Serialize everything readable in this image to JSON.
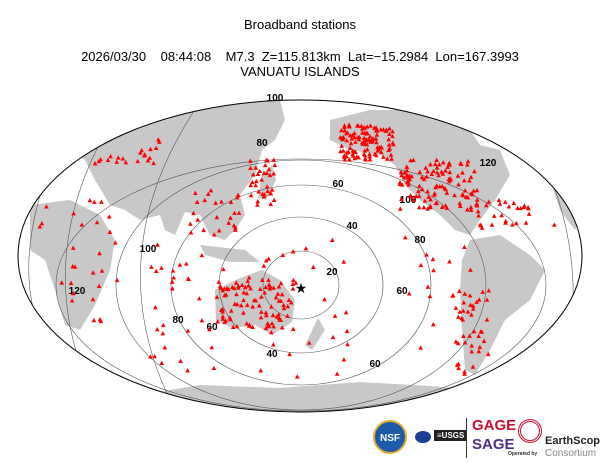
{
  "title": "Broadband stations",
  "event": {
    "date": "2026/03/30",
    "time": "08:44:08",
    "magnitude": "M7.3",
    "depth": "Z=115.813km",
    "lat": "Lat=−15.2984",
    "lon": "Lon=167.3993",
    "region": "VANUATU ISLANDS"
  },
  "map": {
    "land_color": "#c8c8c8",
    "station_color": "#ff0000",
    "epicenter_marker": "star",
    "contour_labels": [
      "100",
      "80",
      "60",
      "40",
      "20",
      "60",
      "80",
      "100",
      "120",
      "80",
      "60",
      "40",
      "60",
      "100",
      "120"
    ]
  },
  "logos": {
    "nsf": "NSF",
    "nasa": "NASA",
    "usgs": "USGS",
    "gage": "GAGE",
    "sage": "SAGE",
    "operated_by": "Operated by",
    "earthscope": "EarthScope",
    "consortium": "Consortium"
  }
}
